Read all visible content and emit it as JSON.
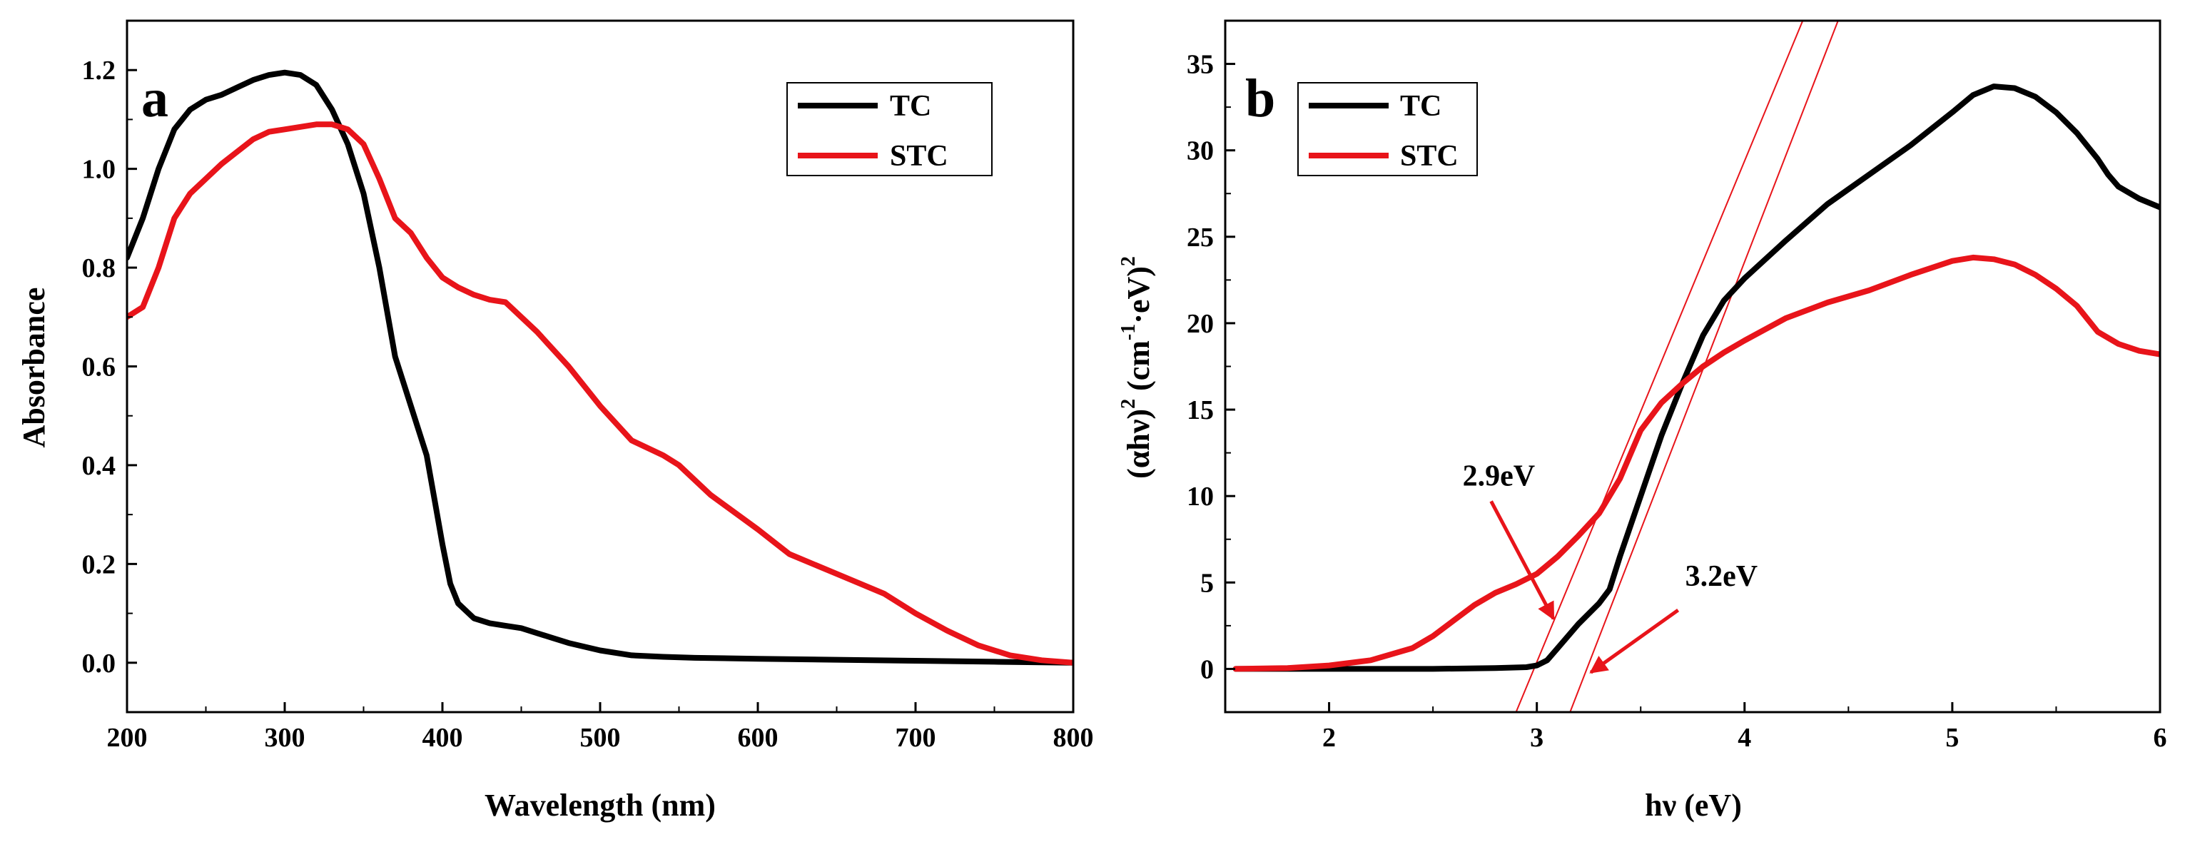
{
  "chart_data": [
    {
      "type": "line",
      "panel_label": "a",
      "xlabel": "Wavelength (nm)",
      "ylabel": "Absorbance",
      "xlim": [
        200,
        800
      ],
      "ylim": [
        -0.1,
        1.3
      ],
      "xticks": [
        "200",
        "300",
        "400",
        "500",
        "600",
        "700",
        "800"
      ],
      "yticks": [
        "0.0",
        "0.2",
        "0.4",
        "0.6",
        "0.8",
        "1.0",
        "1.2"
      ],
      "xtick_values": [
        200,
        300,
        400,
        500,
        600,
        700,
        800
      ],
      "ytick_values": [
        0.0,
        0.2,
        0.4,
        0.6,
        0.8,
        1.0,
        1.2
      ],
      "legend_position": "top-right",
      "series": [
        {
          "name": "TC",
          "color": "#000000",
          "x": [
            200,
            210,
            220,
            230,
            240,
            250,
            260,
            270,
            280,
            290,
            300,
            310,
            320,
            330,
            340,
            350,
            360,
            370,
            380,
            390,
            395,
            400,
            405,
            410,
            420,
            430,
            440,
            450,
            460,
            470,
            480,
            500,
            520,
            540,
            560,
            600,
            650,
            700,
            750,
            800
          ],
          "values": [
            0.82,
            0.9,
            1.0,
            1.08,
            1.12,
            1.14,
            1.15,
            1.165,
            1.18,
            1.19,
            1.195,
            1.19,
            1.17,
            1.12,
            1.05,
            0.95,
            0.8,
            0.62,
            0.52,
            0.42,
            0.33,
            0.24,
            0.16,
            0.12,
            0.09,
            0.08,
            0.075,
            0.07,
            0.06,
            0.05,
            0.04,
            0.025,
            0.015,
            0.012,
            0.01,
            0.008,
            0.006,
            0.004,
            0.002,
            0.0
          ]
        },
        {
          "name": "STC",
          "color": "#e8141a",
          "x": [
            200,
            210,
            220,
            230,
            240,
            250,
            260,
            270,
            280,
            290,
            300,
            310,
            320,
            330,
            340,
            350,
            360,
            370,
            380,
            390,
            400,
            410,
            420,
            430,
            440,
            450,
            460,
            480,
            500,
            520,
            540,
            550,
            570,
            600,
            620,
            650,
            680,
            700,
            720,
            740,
            760,
            780,
            800
          ],
          "values": [
            0.7,
            0.72,
            0.8,
            0.9,
            0.95,
            0.98,
            1.01,
            1.035,
            1.06,
            1.075,
            1.08,
            1.085,
            1.09,
            1.09,
            1.08,
            1.05,
            0.98,
            0.9,
            0.87,
            0.82,
            0.78,
            0.76,
            0.745,
            0.735,
            0.73,
            0.7,
            0.67,
            0.6,
            0.52,
            0.45,
            0.42,
            0.4,
            0.34,
            0.27,
            0.22,
            0.18,
            0.14,
            0.1,
            0.065,
            0.035,
            0.015,
            0.005,
            0.0
          ]
        }
      ]
    },
    {
      "type": "line",
      "panel_label": "b",
      "xlabel": "hν (eV)",
      "ylabel_parts": [
        "(αhν)",
        "2",
        " (cm",
        "-1",
        "·eV)",
        "2"
      ],
      "xlim": [
        1.5,
        6
      ],
      "ylim": [
        -2.5,
        37.5
      ],
      "xticks": [
        "2",
        "3",
        "4",
        "5",
        "6"
      ],
      "yticks": [
        "0",
        "5",
        "10",
        "15",
        "20",
        "25",
        "30",
        "35"
      ],
      "xtick_values": [
        2,
        3,
        4,
        5,
        6
      ],
      "ytick_values": [
        0,
        5,
        10,
        15,
        20,
        25,
        30,
        35
      ],
      "legend_position": "top-left",
      "series": [
        {
          "name": "TC",
          "color": "#000000",
          "x": [
            1.55,
            2.0,
            2.5,
            2.8,
            2.95,
            3.0,
            3.05,
            3.1,
            3.2,
            3.3,
            3.35,
            3.4,
            3.5,
            3.6,
            3.7,
            3.8,
            3.9,
            4.0,
            4.2,
            4.4,
            4.6,
            4.8,
            5.0,
            5.1,
            5.2,
            5.3,
            5.4,
            5.5,
            5.6,
            5.7,
            5.75,
            5.8,
            5.9,
            6.0
          ],
          "values": [
            0,
            0,
            0,
            0.05,
            0.1,
            0.2,
            0.5,
            1.2,
            2.6,
            3.8,
            4.6,
            6.5,
            10.0,
            13.5,
            16.5,
            19.3,
            21.3,
            22.6,
            24.8,
            26.9,
            28.6,
            30.3,
            32.2,
            33.2,
            33.7,
            33.6,
            33.1,
            32.2,
            31.0,
            29.5,
            28.6,
            27.9,
            27.2,
            26.7
          ]
        },
        {
          "name": "STC",
          "color": "#e8141a",
          "x": [
            1.55,
            1.8,
            2.0,
            2.2,
            2.4,
            2.5,
            2.6,
            2.7,
            2.8,
            2.9,
            3.0,
            3.1,
            3.2,
            3.3,
            3.4,
            3.5,
            3.6,
            3.7,
            3.8,
            3.9,
            4.0,
            4.2,
            4.4,
            4.6,
            4.8,
            5.0,
            5.1,
            5.2,
            5.3,
            5.4,
            5.5,
            5.6,
            5.7,
            5.8,
            5.9,
            6.0
          ],
          "values": [
            0,
            0.05,
            0.2,
            0.5,
            1.2,
            1.9,
            2.8,
            3.7,
            4.4,
            4.9,
            5.5,
            6.5,
            7.7,
            9.0,
            11.0,
            13.8,
            15.4,
            16.5,
            17.5,
            18.3,
            19.0,
            20.3,
            21.2,
            21.9,
            22.8,
            23.6,
            23.8,
            23.7,
            23.4,
            22.8,
            22.0,
            21.0,
            19.5,
            18.8,
            18.4,
            18.2
          ]
        }
      ],
      "tangent_lines": [
        {
          "name": "STC tangent",
          "x": [
            2.9,
            4.28
          ],
          "values": [
            -2.5,
            37.5
          ]
        },
        {
          "name": "TC tangent",
          "x": [
            3.16,
            4.45
          ],
          "values": [
            -2.5,
            37.5
          ]
        }
      ],
      "annotations": [
        {
          "text": "2.9eV",
          "arrow_from": [
            2.78,
            9.7
          ],
          "arrow_to": [
            3.08,
            2.9
          ]
        },
        {
          "text": "3.2eV",
          "arrow_from": [
            3.68,
            3.4
          ],
          "arrow_to": [
            3.26,
            -0.2
          ]
        }
      ]
    }
  ]
}
